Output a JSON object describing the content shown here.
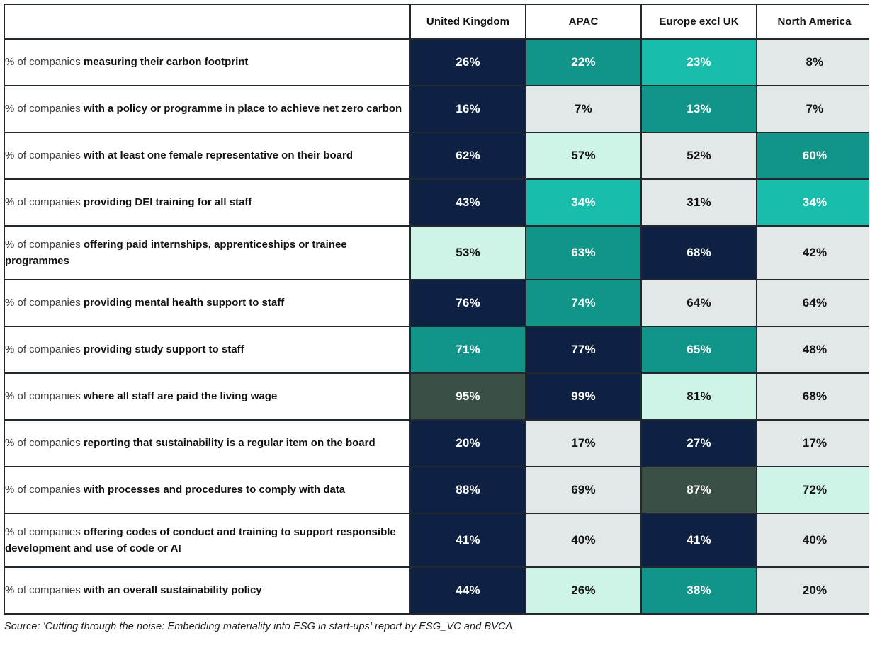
{
  "chart_data": {
    "type": "heatmap",
    "title": "",
    "columns": [
      "United Kingdom",
      "APAC",
      "Europe excl UK",
      "North America"
    ],
    "row_label_prefix": "% of companies",
    "rows": [
      {
        "label": "measuring their carbon footprint",
        "values": [
          26,
          22,
          23,
          8
        ],
        "colors": [
          "navy",
          "teal",
          "bright_teal",
          "gray"
        ],
        "two_line": false
      },
      {
        "label": "with a policy or programme in place to achieve net zero carbon",
        "values": [
          16,
          7,
          13,
          7
        ],
        "colors": [
          "navy",
          "gray",
          "teal",
          "gray"
        ],
        "two_line": false
      },
      {
        "label": "with at least one female representative on their board",
        "values": [
          62,
          57,
          52,
          60
        ],
        "colors": [
          "navy",
          "mint",
          "gray",
          "teal"
        ],
        "two_line": false
      },
      {
        "label": "providing DEI training for all staff",
        "values": [
          43,
          34,
          31,
          34
        ],
        "colors": [
          "navy",
          "bright_teal",
          "gray",
          "bright_teal"
        ],
        "two_line": false
      },
      {
        "label": "offering paid internships, apprenticeships or trainee programmes",
        "values": [
          53,
          63,
          68,
          42
        ],
        "colors": [
          "mint",
          "teal",
          "navy",
          "gray"
        ],
        "two_line": true
      },
      {
        "label": "providing mental health support to staff",
        "values": [
          76,
          74,
          64,
          64
        ],
        "colors": [
          "navy",
          "teal",
          "gray",
          "gray"
        ],
        "two_line": false
      },
      {
        "label": "providing study support to staff",
        "values": [
          71,
          77,
          65,
          48
        ],
        "colors": [
          "teal",
          "navy",
          "teal",
          "gray"
        ],
        "two_line": false
      },
      {
        "label": "where all staff are paid the living wage",
        "values": [
          95,
          99,
          81,
          68
        ],
        "colors": [
          "olive",
          "navy",
          "mint",
          "gray"
        ],
        "two_line": false
      },
      {
        "label": "reporting that sustainability is a regular item on the board",
        "values": [
          20,
          17,
          27,
          17
        ],
        "colors": [
          "navy",
          "gray",
          "navy",
          "gray"
        ],
        "two_line": false
      },
      {
        "label": "with processes and procedures to comply with data",
        "values": [
          88,
          69,
          87,
          72
        ],
        "colors": [
          "navy",
          "gray",
          "olive",
          "mint"
        ],
        "two_line": false
      },
      {
        "label": "offering codes of conduct and training to support responsible development and use of code or AI",
        "values": [
          41,
          40,
          41,
          40
        ],
        "colors": [
          "navy",
          "gray",
          "navy",
          "gray"
        ],
        "two_line": true
      },
      {
        "label": "with an overall sustainability policy",
        "values": [
          44,
          26,
          38,
          20
        ],
        "colors": [
          "navy",
          "mint",
          "teal",
          "gray"
        ],
        "two_line": false
      }
    ],
    "value_suffix": "%",
    "palette": {
      "navy": "#0f2143",
      "teal": "#129589",
      "bright_teal": "#19bdac",
      "mint": "#cdf4e7",
      "gray": "#e2e8e7",
      "olive": "#3a5047"
    },
    "text_on_dark": "#ffffff",
    "text_on_light": "#131313",
    "legend_position": "none",
    "grid": true
  },
  "footer": {
    "source_text": "Source: 'Cutting through the noise: Embedding materiality into ESG in start-ups' report by ESG_VC and BVCA"
  }
}
